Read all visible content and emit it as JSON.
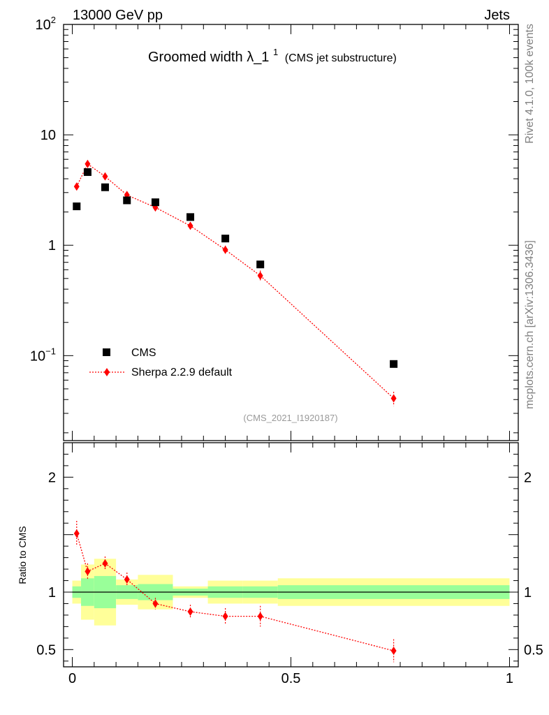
{
  "header": {
    "energy_label": "13000 GeV pp",
    "category_label": "Jets"
  },
  "side_labels": {
    "rivet": "Rivet 4.1.0,  100k events",
    "mcplots": "mcplots.cern.ch [arXiv:1306.3436]"
  },
  "colors": {
    "data": "#000000",
    "mc": "#ff0000",
    "band_inner": "#99ff99",
    "band_outer": "#ffff99",
    "watermark": "#999999"
  },
  "chart_data": [
    {
      "type": "scatter",
      "panel": "main",
      "title_main": "Groomed width",
      "title_lambda": "λ_1",
      "title_sup": "1",
      "title_suffix": "(CMS jet substructure)",
      "watermark": "(CMS_2021_I1920187)",
      "yscale": "log",
      "ylim": [
        0.017,
        100
      ],
      "xlim": [
        -0.02,
        1.02
      ],
      "ytick_labels": [
        {
          "value": 100,
          "base": "10",
          "exp": "2"
        },
        {
          "value": 10,
          "base": "10",
          "exp": ""
        },
        {
          "value": 1,
          "base": "1",
          "exp": ""
        },
        {
          "value": 0.1,
          "base": "10",
          "exp": "−1"
        }
      ],
      "legend": {
        "position": "bottom-left",
        "entries": [
          {
            "name": "CMS",
            "marker": "square"
          },
          {
            "name": "Sherpa 2.2.9 default",
            "marker": "diamond"
          }
        ]
      },
      "series": [
        {
          "name": "CMS",
          "points": [
            {
              "x": 0.01,
              "y": 2.25
            },
            {
              "x": 0.035,
              "y": 4.6
            },
            {
              "x": 0.075,
              "y": 3.35
            },
            {
              "x": 0.125,
              "y": 2.55
            },
            {
              "x": 0.19,
              "y": 2.45
            },
            {
              "x": 0.27,
              "y": 1.8
            },
            {
              "x": 0.35,
              "y": 1.15
            },
            {
              "x": 0.43,
              "y": 0.67
            },
            {
              "x": 0.735,
              "y": 0.084
            }
          ]
        },
        {
          "name": "Sherpa 2.2.9 default",
          "points": [
            {
              "x": 0.01,
              "y": 3.4,
              "err": 0.25
            },
            {
              "x": 0.035,
              "y": 5.45,
              "err": 0.3
            },
            {
              "x": 0.075,
              "y": 4.2,
              "err": 0.2
            },
            {
              "x": 0.125,
              "y": 2.85,
              "err": 0.15
            },
            {
              "x": 0.19,
              "y": 2.2,
              "err": 0.12
            },
            {
              "x": 0.27,
              "y": 1.5,
              "err": 0.1
            },
            {
              "x": 0.35,
              "y": 0.91,
              "err": 0.08
            },
            {
              "x": 0.43,
              "y": 0.53,
              "err": 0.06
            },
            {
              "x": 0.735,
              "y": 0.041,
              "err": 0.006
            }
          ]
        }
      ]
    },
    {
      "type": "scatter",
      "panel": "ratio",
      "ylabel": "Ratio to CMS",
      "ylim": [
        0.35,
        2.3
      ],
      "xlim": [
        -0.02,
        1.02
      ],
      "ytick_labels": [
        "2",
        "1",
        "0.5"
      ],
      "ytick_values": [
        2,
        1,
        0.5
      ],
      "xtick_labels": [
        "0",
        "0.5",
        "1"
      ],
      "xtick_values": [
        0,
        0.5,
        1
      ],
      "bands": [
        {
          "x0": 0.0,
          "x1": 0.02,
          "inner": [
            0.95,
            1.05
          ],
          "outer": [
            0.9,
            1.1
          ]
        },
        {
          "x0": 0.02,
          "x1": 0.05,
          "inner": [
            0.88,
            1.12
          ],
          "outer": [
            0.76,
            1.24
          ]
        },
        {
          "x0": 0.05,
          "x1": 0.1,
          "inner": [
            0.86,
            1.14
          ],
          "outer": [
            0.71,
            1.29
          ]
        },
        {
          "x0": 0.1,
          "x1": 0.15,
          "inner": [
            0.94,
            1.06
          ],
          "outer": [
            0.89,
            1.11
          ]
        },
        {
          "x0": 0.15,
          "x1": 0.23,
          "inner": [
            0.93,
            1.07
          ],
          "outer": [
            0.85,
            1.15
          ]
        },
        {
          "x0": 0.23,
          "x1": 0.31,
          "inner": [
            0.97,
            1.03
          ],
          "outer": [
            0.95,
            1.05
          ]
        },
        {
          "x0": 0.31,
          "x1": 0.39,
          "inner": [
            0.95,
            1.05
          ],
          "outer": [
            0.9,
            1.1
          ]
        },
        {
          "x0": 0.39,
          "x1": 0.47,
          "inner": [
            0.95,
            1.05
          ],
          "outer": [
            0.9,
            1.1
          ]
        },
        {
          "x0": 0.47,
          "x1": 1.0,
          "inner": [
            0.94,
            1.06
          ],
          "outer": [
            0.88,
            1.12
          ]
        }
      ],
      "series": [
        {
          "name": "Sherpa 2.2.9 default",
          "points": [
            {
              "x": 0.01,
              "y": 1.51,
              "err": 0.11
            },
            {
              "x": 0.035,
              "y": 1.18,
              "err": 0.07
            },
            {
              "x": 0.075,
              "y": 1.25,
              "err": 0.06
            },
            {
              "x": 0.125,
              "y": 1.11,
              "err": 0.06
            },
            {
              "x": 0.19,
              "y": 0.9,
              "err": 0.05
            },
            {
              "x": 0.27,
              "y": 0.83,
              "err": 0.06
            },
            {
              "x": 0.35,
              "y": 0.79,
              "err": 0.07
            },
            {
              "x": 0.43,
              "y": 0.79,
              "err": 0.09
            },
            {
              "x": 0.735,
              "y": 0.49,
              "err": 0.1
            }
          ]
        }
      ]
    }
  ]
}
